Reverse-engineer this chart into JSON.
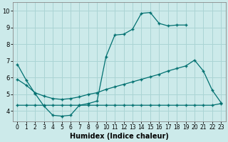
{
  "xlabel": "Humidex (Indice chaleur)",
  "bg_color": "#cceaea",
  "grid_color": "#aad4d4",
  "line_color": "#007070",
  "xlim": [
    -0.5,
    23.5
  ],
  "ylim": [
    3.4,
    10.5
  ],
  "xticks": [
    0,
    1,
    2,
    3,
    4,
    5,
    6,
    7,
    8,
    9,
    10,
    11,
    12,
    13,
    14,
    15,
    16,
    17,
    18,
    19,
    20,
    21,
    22,
    23
  ],
  "yticks": [
    4,
    5,
    6,
    7,
    8,
    9,
    10
  ],
  "line1_x": [
    0,
    1,
    2,
    3,
    4,
    5,
    6,
    7,
    8,
    9,
    10,
    11,
    12,
    13,
    14,
    15,
    16,
    17,
    18,
    19
  ],
  "line1_y": [
    6.8,
    5.85,
    5.05,
    4.3,
    3.75,
    3.7,
    3.75,
    4.35,
    4.45,
    4.6,
    7.25,
    8.55,
    8.6,
    8.9,
    9.85,
    9.9,
    9.25,
    9.1,
    9.15,
    9.15
  ],
  "line2_x": [
    0,
    1,
    2,
    3,
    4,
    5,
    6,
    7,
    8,
    9,
    10,
    11,
    12,
    13,
    14,
    15,
    16,
    17,
    18,
    19,
    20,
    21,
    22,
    23
  ],
  "line2_y": [
    5.9,
    5.55,
    5.1,
    4.9,
    4.75,
    4.7,
    4.75,
    4.85,
    5.0,
    5.1,
    5.3,
    5.45,
    5.6,
    5.75,
    5.9,
    6.05,
    6.2,
    6.4,
    6.55,
    6.7,
    7.05,
    6.4,
    5.25,
    4.5
  ],
  "line3_x": [
    0,
    1,
    2,
    3,
    4,
    5,
    6,
    7,
    8,
    9,
    10,
    11,
    12,
    13,
    14,
    15,
    16,
    17,
    18,
    19,
    20,
    21,
    22,
    23
  ],
  "line3_y": [
    4.35,
    4.35,
    4.35,
    4.35,
    4.35,
    4.35,
    4.35,
    4.35,
    4.35,
    4.35,
    4.35,
    4.35,
    4.35,
    4.35,
    4.35,
    4.35,
    4.35,
    4.35,
    4.35,
    4.35,
    4.35,
    4.35,
    4.35,
    4.45
  ]
}
